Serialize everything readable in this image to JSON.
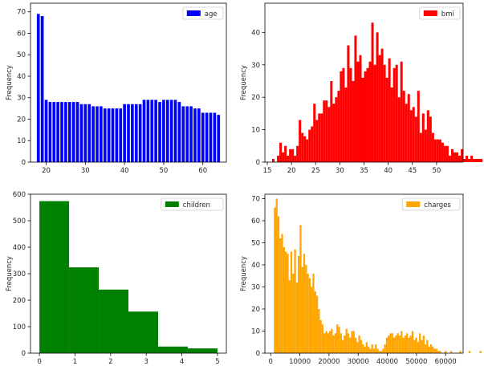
{
  "chart_data": [
    {
      "type": "bar",
      "ylabel": "Frequency",
      "legend": [
        {
          "label": "age",
          "color": "#0000ff"
        }
      ],
      "legend_position": "top-right",
      "color": "#0000ff",
      "xlim": [
        16,
        66
      ],
      "ylim": [
        0,
        74
      ],
      "xticks": [
        20,
        30,
        40,
        50,
        60
      ],
      "yticks": [
        0,
        10,
        20,
        30,
        40,
        50,
        60,
        70
      ],
      "bar_width": 0.75,
      "x": [
        18,
        19,
        20,
        21,
        22,
        23,
        24,
        25,
        26,
        27,
        28,
        29,
        30,
        31,
        32,
        33,
        34,
        35,
        36,
        37,
        38,
        39,
        40,
        41,
        42,
        43,
        44,
        45,
        46,
        47,
        48,
        49,
        50,
        51,
        52,
        53,
        54,
        55,
        56,
        57,
        58,
        59,
        60,
        61,
        62,
        63,
        64
      ],
      "values": [
        69,
        68,
        29,
        28,
        28,
        28,
        28,
        28,
        28,
        28,
        28,
        27,
        27,
        27,
        26,
        26,
        26,
        25,
        25,
        25,
        25,
        25,
        27,
        27,
        27,
        27,
        27,
        29,
        29,
        29,
        29,
        28,
        29,
        29,
        29,
        29,
        28,
        26,
        26,
        26,
        25,
        25,
        23,
        23,
        23,
        23,
        22
      ]
    },
    {
      "type": "bar",
      "ylabel": "Frequency",
      "legend": [
        {
          "label": "bmi",
          "color": "#ff0000"
        }
      ],
      "legend_position": "top-right",
      "color": "#ff0000",
      "xlim": [
        14.5,
        55.5
      ],
      "ylim": [
        0,
        49
      ],
      "xticks": [
        15,
        20,
        25,
        30,
        35,
        40,
        45,
        50
      ],
      "yticks": [
        0,
        10,
        20,
        30,
        40
      ],
      "bin_start": 16,
      "bin_width": 0.5,
      "values": [
        1,
        0,
        2,
        6,
        3,
        5,
        2,
        4,
        4,
        2,
        5,
        13,
        9,
        8,
        7,
        10,
        11,
        18,
        13,
        15,
        15,
        19,
        19,
        17,
        25,
        18,
        20,
        22,
        28,
        29,
        23,
        36,
        29,
        25,
        39,
        31,
        33,
        26,
        28,
        29,
        31,
        43,
        30,
        40,
        33,
        35,
        30,
        26,
        32,
        23,
        29,
        30,
        20,
        31,
        22,
        18,
        21,
        16,
        17,
        14,
        22,
        9,
        15,
        10,
        16,
        14,
        9,
        7,
        7,
        7,
        6,
        5,
        5,
        2,
        4,
        3,
        3,
        2,
        4,
        1,
        2,
        1,
        2,
        1,
        1,
        1,
        1,
        0,
        0,
        0,
        0,
        0,
        0,
        0,
        0,
        0,
        0,
        0,
        0,
        0,
        0,
        0,
        0,
        0,
        0,
        0,
        0,
        1
      ]
    },
    {
      "type": "bar",
      "ylabel": "Frequency",
      "legend": [
        {
          "label": "children",
          "color": "#008000"
        }
      ],
      "legend_position": "top-right",
      "color": "#008000",
      "xlim": [
        -0.25,
        5.25
      ],
      "ylim": [
        0,
        600
      ],
      "xticks": [
        0,
        1,
        2,
        3,
        4,
        5
      ],
      "yticks": [
        0,
        100,
        200,
        300,
        400,
        500,
        600
      ],
      "bin_edges": [
        0,
        0.8333,
        1.6667,
        2.5,
        3.3333,
        4.1667,
        5
      ],
      "values": [
        574,
        324,
        240,
        157,
        25,
        18
      ]
    },
    {
      "type": "bar",
      "ylabel": "Frequency",
      "legend": [
        {
          "label": "charges",
          "color": "#ffa500"
        }
      ],
      "legend_position": "top-right",
      "color": "#ffa500",
      "xlim": [
        -2000,
        66000
      ],
      "ylim": [
        0,
        72
      ],
      "xticks": [
        0,
        10000,
        20000,
        30000,
        40000,
        50000,
        60000
      ],
      "yticks": [
        0,
        10,
        20,
        30,
        40,
        50,
        60,
        70
      ],
      "bin_start": 1100,
      "bin_width": 630,
      "values": [
        66,
        70,
        62,
        52,
        54,
        48,
        46,
        45,
        33,
        46,
        36,
        47,
        32,
        44,
        58,
        39,
        45,
        40,
        36,
        34,
        30,
        36,
        28,
        26,
        20,
        15,
        13,
        9,
        10,
        9,
        10,
        11,
        8,
        9,
        13,
        12,
        9,
        6,
        8,
        11,
        9,
        7,
        10,
        10,
        7,
        5,
        8,
        6,
        4,
        3,
        5,
        3,
        2,
        4,
        2,
        4,
        2,
        1,
        1,
        2,
        4,
        7,
        8,
        9,
        9,
        7,
        8,
        9,
        8,
        10,
        7,
        8,
        9,
        7,
        8,
        10,
        6,
        7,
        5,
        9,
        6,
        8,
        4,
        6,
        3,
        4,
        3,
        2,
        2,
        1,
        1,
        0,
        0,
        1,
        0,
        0,
        1,
        0,
        0,
        0,
        0,
        1,
        0,
        0,
        0,
        0,
        1,
        0,
        0,
        0,
        0,
        0,
        1,
        0,
        0,
        0,
        0,
        0,
        0,
        0,
        0,
        0,
        1,
        0,
        0,
        0,
        0,
        0,
        0,
        0,
        0,
        0,
        0,
        0,
        0,
        0,
        0,
        0,
        0,
        0,
        0,
        1,
        1,
        1,
        1,
        1,
        1
      ]
    }
  ]
}
